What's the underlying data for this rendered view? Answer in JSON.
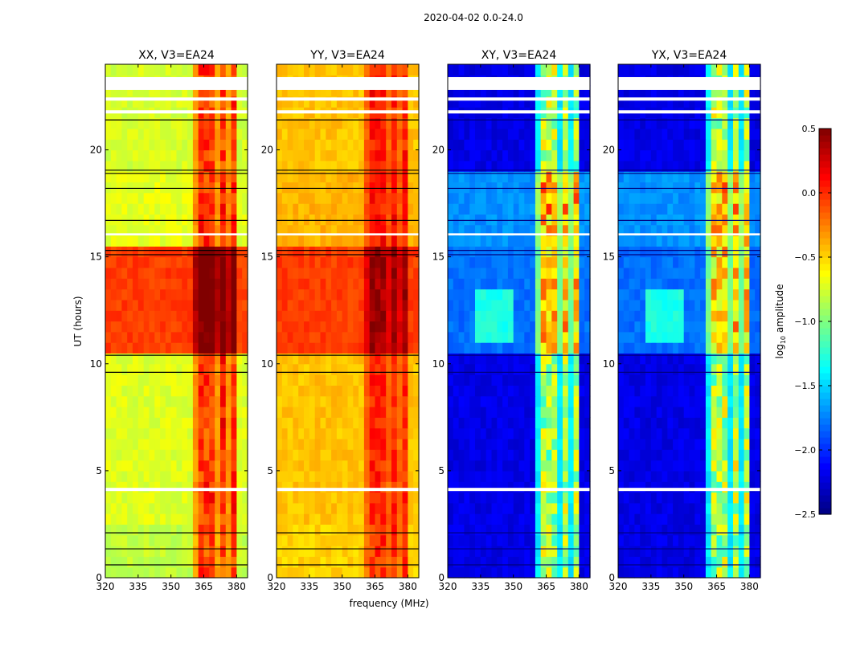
{
  "chart_data": {
    "type": "heatmap",
    "title": "2020-04-02 0.0-24.0",
    "xlabel": "frequency (MHz)",
    "ylabel": "UT (hours)",
    "xlim": [
      320,
      385
    ],
    "ylim": [
      0,
      24
    ],
    "xticks": [
      "320",
      "335",
      "350",
      "365",
      "380"
    ],
    "xtick_values": [
      320,
      335,
      350,
      365,
      380
    ],
    "yticks": [
      "0",
      "5",
      "10",
      "15",
      "20"
    ],
    "ytick_values": [
      0,
      5,
      10,
      15,
      20
    ],
    "colorbar": {
      "label_prefix": "log",
      "label_sub": "10",
      "label_suffix": " amplitude",
      "range": [
        -2.5,
        0.5
      ],
      "ticks": [
        "0.5",
        "0.0",
        "−0.5",
        "−1.0",
        "−1.5",
        "−2.0",
        "−2.5"
      ],
      "tick_values": [
        0.5,
        0.0,
        -0.5,
        -1.0,
        -1.5,
        -2.0,
        -2.5
      ],
      "colormap": "jet"
    },
    "panels": [
      {
        "title": "XX, V3=EA24",
        "segments": [
          [
            0,
            2.1,
            -0.8
          ],
          [
            2.1,
            10.4,
            -0.72
          ],
          [
            10.4,
            15.3,
            -0.05
          ],
          [
            15.3,
            19.0,
            -0.7
          ],
          [
            19.0,
            24,
            -0.75
          ]
        ],
        "rfi_boost": 0.75
      },
      {
        "title": "YY, V3=EA24",
        "segments": [
          [
            0,
            2.1,
            -0.5
          ],
          [
            2.1,
            10.4,
            -0.45
          ],
          [
            10.4,
            15.3,
            -0.05
          ],
          [
            15.3,
            19.0,
            -0.4
          ],
          [
            19.0,
            24,
            -0.45
          ]
        ],
        "rfi_boost": 0.5
      },
      {
        "title": "XY, V3=EA24",
        "segments": [
          [
            0,
            2.1,
            -2.2
          ],
          [
            2.1,
            10.4,
            -2.2
          ],
          [
            10.4,
            15.3,
            -1.8
          ],
          [
            15.3,
            19.0,
            -1.7
          ],
          [
            19.0,
            24,
            -2.2
          ]
        ],
        "rfi_boost": 1.4
      },
      {
        "title": "YX, V3=EA24",
        "segments": [
          [
            0,
            2.1,
            -2.2
          ],
          [
            2.1,
            10.4,
            -2.2
          ],
          [
            10.4,
            15.3,
            -1.8
          ],
          [
            15.3,
            19.0,
            -1.7
          ],
          [
            19.0,
            24,
            -2.2
          ]
        ],
        "rfi_boost": 1.4
      }
    ],
    "rfi_columns_mhz": [
      [
        362.5,
        366.5
      ],
      [
        367.5,
        371
      ],
      [
        372,
        375.5
      ],
      [
        376.5,
        379.5
      ]
    ],
    "flagged_hours": [
      [
        22.8,
        23.4
      ],
      [
        22.3,
        22.45
      ],
      [
        21.7,
        21.85
      ],
      [
        16.0,
        16.1
      ],
      [
        4.05,
        4.2
      ]
    ],
    "dark_lines_hours": [
      0.6,
      1.35,
      2.1,
      9.6,
      10.4,
      15.1,
      15.3,
      16.7,
      18.2,
      18.9,
      19.05,
      21.4
    ]
  }
}
